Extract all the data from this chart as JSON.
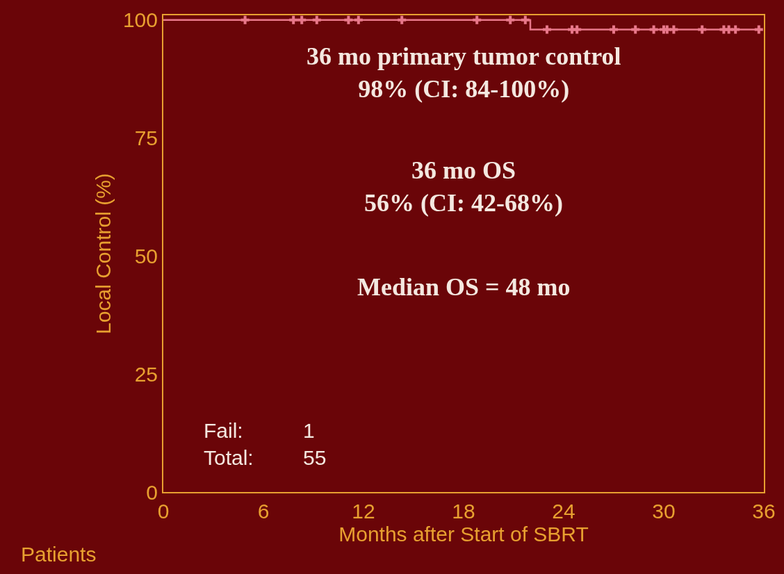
{
  "chart_data": {
    "type": "step",
    "xlabel": "Months after Start of SBRT",
    "ylabel": "Local Control (%)",
    "xlim": [
      0,
      36
    ],
    "xticks": [
      0,
      6,
      12,
      18,
      24,
      30,
      36
    ],
    "ylim": [
      0,
      101
    ],
    "yticks": [
      0,
      25,
      50,
      75,
      100
    ],
    "grid": false,
    "series": [
      {
        "color": "#e8788a",
        "x": [
          0,
          22,
          35.7
        ],
        "values": [
          100,
          98,
          98
        ],
        "marker": "none"
      },
      {
        "type": "scatter",
        "color": "#e8788a",
        "marker": "cross",
        "x": [
          4.9,
          7.8,
          8.3,
          9.2,
          11.1,
          11.7,
          14.3,
          18.8,
          20.8,
          21.7,
          23.0,
          24.5,
          24.8,
          27.0,
          28.3,
          29.4,
          30.0,
          30.2,
          30.6,
          32.3,
          33.6,
          33.9,
          34.3,
          35.7
        ],
        "values": [
          100,
          100,
          100,
          100,
          100,
          100,
          100,
          100,
          100,
          100,
          98,
          98,
          98,
          98,
          98,
          98,
          98,
          98,
          98,
          98,
          98,
          98,
          98,
          98
        ]
      }
    ],
    "annotations": [
      "36 mo primary tumor control\n98% (CI: 84-100%)",
      "36 mo OS\n56% (CI: 42-68%)",
      "Median OS = 48 mo",
      "Fail:\nTotal:",
      "1\n55",
      "Patients"
    ]
  }
}
